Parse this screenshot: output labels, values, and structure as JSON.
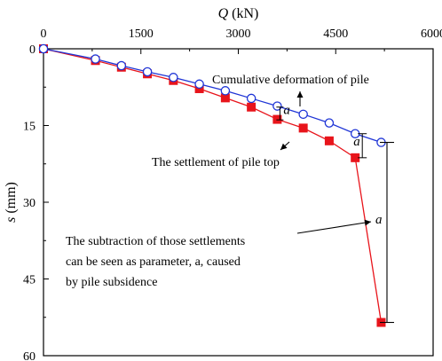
{
  "chart_data": {
    "type": "line",
    "x_axis": {
      "label_var": "Q",
      "label_unit": "(kN)",
      "ticks": [
        0,
        1500,
        3000,
        4500,
        6000
      ],
      "range": [
        0,
        6000
      ],
      "position": "top"
    },
    "y_axis": {
      "label_var": "s",
      "label_unit": "(mm)",
      "ticks": [
        0,
        15,
        30,
        45,
        60
      ],
      "range": [
        0,
        60
      ],
      "inverted": true
    },
    "series": [
      {
        "key": "deformation",
        "marker": "open-circle",
        "color": "#1f35d6",
        "points": [
          [
            0,
            0
          ],
          [
            800,
            2.0
          ],
          [
            1200,
            3.3
          ],
          [
            1600,
            4.5
          ],
          [
            2000,
            5.6
          ],
          [
            2400,
            6.9
          ],
          [
            2800,
            8.2
          ],
          [
            3200,
            9.7
          ],
          [
            3600,
            11.2
          ],
          [
            4000,
            12.8
          ],
          [
            4400,
            14.5
          ],
          [
            4800,
            16.6
          ],
          [
            5200,
            18.3
          ]
        ]
      },
      {
        "key": "settlement",
        "marker": "filled-square",
        "color": "#e8141b",
        "points": [
          [
            0,
            0
          ],
          [
            800,
            2.3
          ],
          [
            1200,
            3.6
          ],
          [
            1600,
            4.9
          ],
          [
            2000,
            6.2
          ],
          [
            2400,
            7.8
          ],
          [
            2800,
            9.6
          ],
          [
            3200,
            11.4
          ],
          [
            3600,
            13.8
          ],
          [
            4000,
            15.5
          ],
          [
            4400,
            18.0
          ],
          [
            4800,
            21.3
          ],
          [
            5200,
            53.5
          ]
        ]
      }
    ],
    "annotations": {
      "cumulative": "Cumulative deformation of pile",
      "settlement": "The settlement of pile top",
      "a_symbol": "a",
      "explain_line1": "The subtraction of  those settlements",
      "explain_line2": "can be seen as parameter, a, caused",
      "explain_line3": "by pile subsidence"
    }
  }
}
